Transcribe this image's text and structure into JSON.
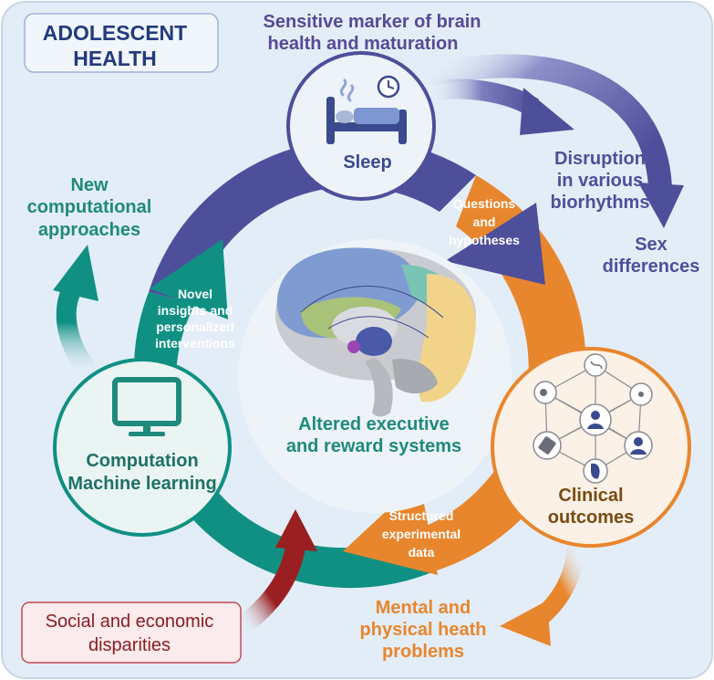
{
  "title": {
    "line1": "ADOLESCENT",
    "line2": "HEALTH"
  },
  "top_note": {
    "line1": "Sensitive marker of brain",
    "line2": "health and maturation"
  },
  "disruption": {
    "line1": "Disruption",
    "line2": "in various",
    "line3": "biorhythms"
  },
  "sex_differences": {
    "line1": "Sex",
    "line2": "differences"
  },
  "new_approaches": {
    "line1": "New",
    "line2": "computational",
    "line3": "approaches"
  },
  "sleep": {
    "label": "Sleep"
  },
  "questions": {
    "line1": "Questions",
    "line2": "and",
    "line3": "hypotheses"
  },
  "novel": {
    "line1": "Novel",
    "line2": "insights and",
    "line3": "personalized",
    "line4": "interventions"
  },
  "center": {
    "line1": "Altered executive",
    "line2": "and reward systems"
  },
  "computation": {
    "line1": "Computation",
    "line2": "Machine learning"
  },
  "clinical": {
    "line1": "Clinical",
    "line2": "outcomes"
  },
  "structured": {
    "line1": "Structured",
    "line2": "experimental",
    "line3": "data"
  },
  "social": {
    "line1": "Social and economic",
    "line2": "disparities"
  },
  "mental": {
    "line1": "Mental and",
    "line2": "physical heath",
    "line3": "problems"
  },
  "colors": {
    "purple": "#4e4f9b",
    "orange": "#e8862d",
    "teal": "#0f9083",
    "dark_red": "#9a1f20",
    "background": "#e3edf7"
  }
}
